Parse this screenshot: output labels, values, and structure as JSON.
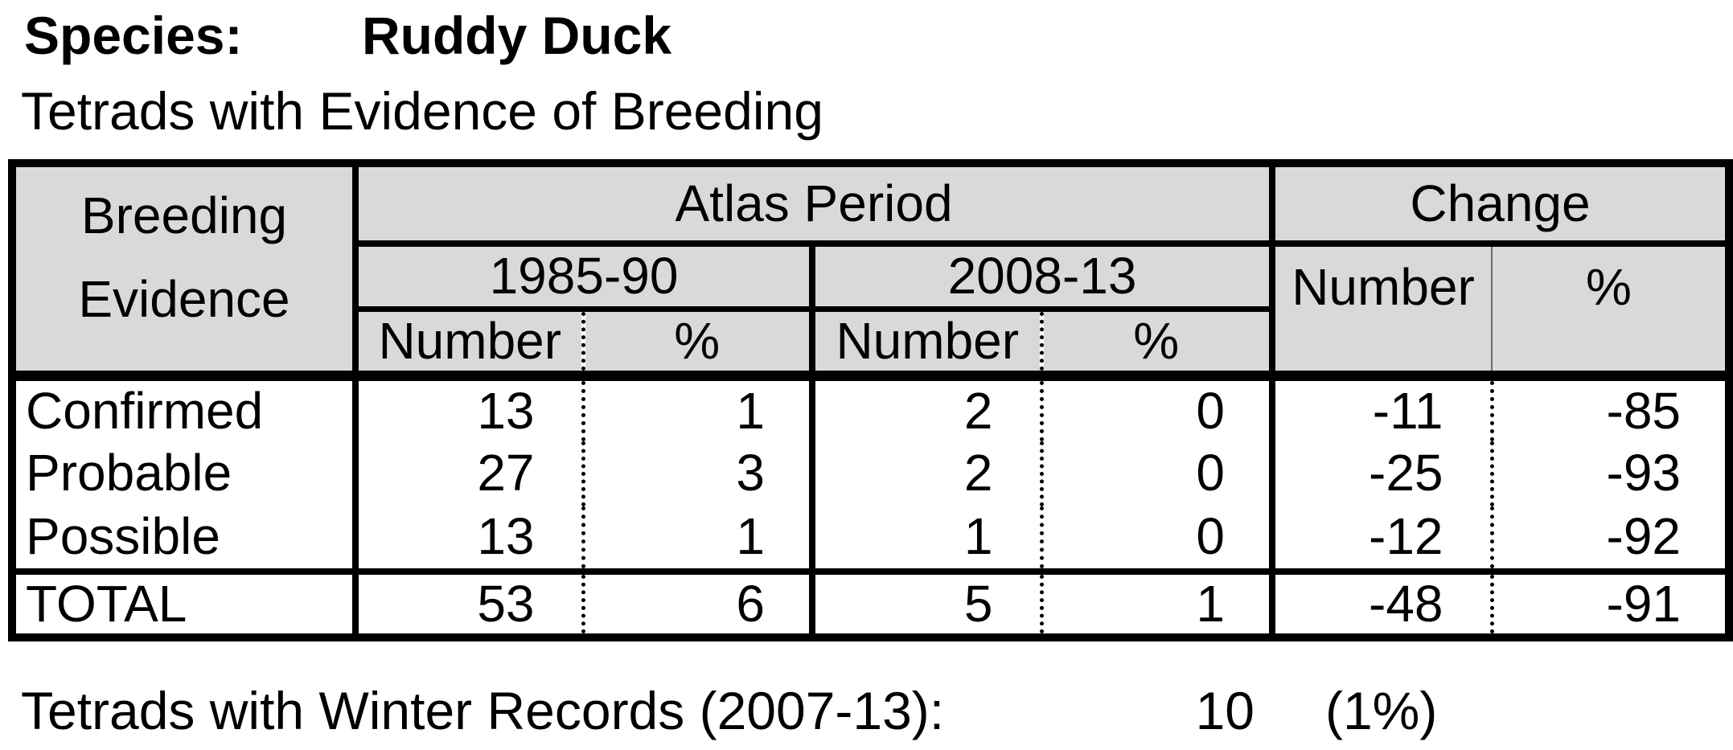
{
  "header": {
    "species_label": "Species:",
    "species_value": "Ruddy Duck",
    "table_title": "Tetrads with Evidence of Breeding"
  },
  "table": {
    "corner": {
      "line1": "Breeding",
      "line2": "Evidence"
    },
    "groups": {
      "atlas": "Atlas Period",
      "change": "Change"
    },
    "periods": {
      "p1": "1985-90",
      "p2": "2008-13"
    },
    "subheaders": {
      "number": "Number",
      "percent": "%"
    },
    "rows": [
      {
        "label": "Confirmed",
        "p1_number": "13",
        "p1_percent": "1",
        "p2_number": "2",
        "p2_percent": "0",
        "change_number": "-11",
        "change_percent": "-85"
      },
      {
        "label": "Probable",
        "p1_number": "27",
        "p1_percent": "3",
        "p2_number": "2",
        "p2_percent": "0",
        "change_number": "-25",
        "change_percent": "-93"
      },
      {
        "label": "Possible",
        "p1_number": "13",
        "p1_percent": "1",
        "p2_number": "1",
        "p2_percent": "0",
        "change_number": "-12",
        "change_percent": "-92"
      }
    ],
    "total": {
      "label": "TOTAL",
      "p1_number": "53",
      "p1_percent": "6",
      "p2_number": "5",
      "p2_percent": "1",
      "change_number": "-48",
      "change_percent": "-91"
    },
    "colors": {
      "header_bg": "#d9d9d9",
      "border": "#000000",
      "text": "#000000"
    }
  },
  "footer": {
    "label": "Tetrads with Winter Records (2007-13):",
    "value": "10",
    "percent": "(1%)"
  }
}
